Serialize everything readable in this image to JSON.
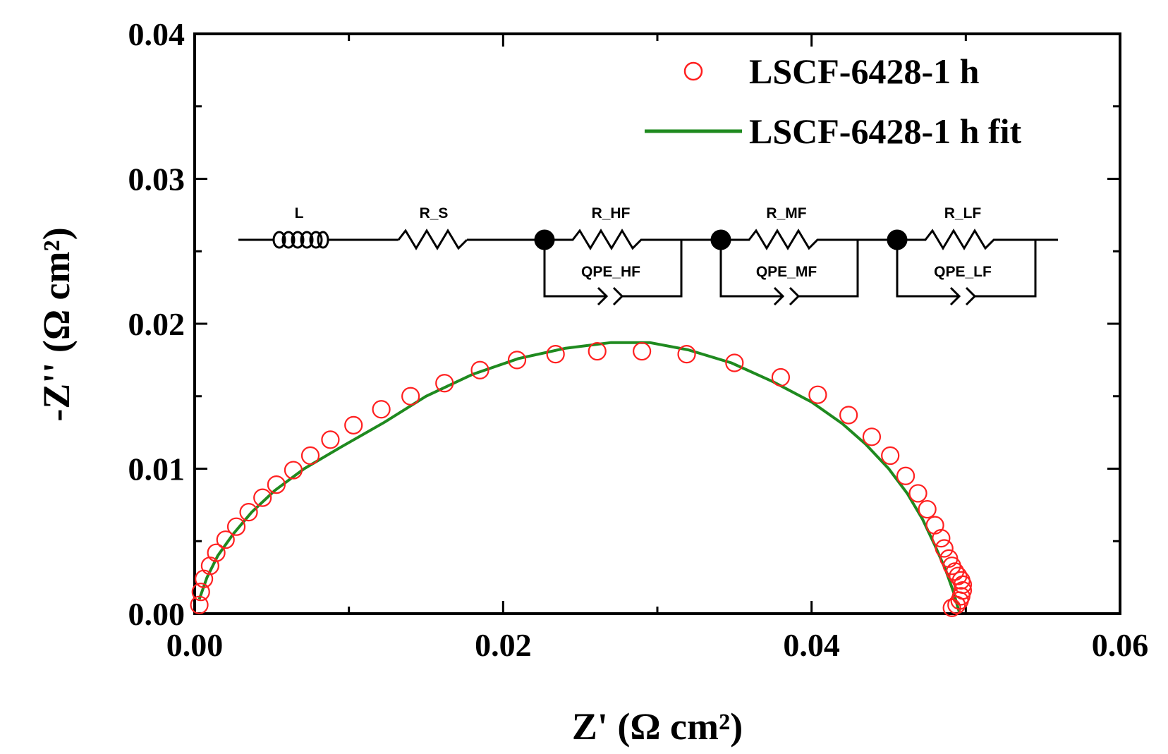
{
  "chart_data": {
    "type": "scatter",
    "xlabel": "Z' (Ω cm²)",
    "ylabel": "-Z'' (Ω cm²)",
    "xlim": [
      0,
      0.06
    ],
    "ylim": [
      0,
      0.04
    ],
    "x_ticks": [
      "0.00",
      "0.02",
      "0.04",
      "0.06"
    ],
    "y_ticks": [
      "0.00",
      "0.01",
      "0.02",
      "0.03",
      "0.04"
    ],
    "series": [
      {
        "name": "LSCF-6428-1 h",
        "style": "open-circle",
        "color": "#ff2020",
        "points": [
          [
            0.0003,
            0.0006
          ],
          [
            0.0004,
            0.0015
          ],
          [
            0.0006,
            0.0024
          ],
          [
            0.001,
            0.0033
          ],
          [
            0.0014,
            0.0042
          ],
          [
            0.002,
            0.0051
          ],
          [
            0.0027,
            0.006
          ],
          [
            0.0035,
            0.007
          ],
          [
            0.0044,
            0.008
          ],
          [
            0.0053,
            0.0089
          ],
          [
            0.0064,
            0.0099
          ],
          [
            0.0075,
            0.0109
          ],
          [
            0.0088,
            0.012
          ],
          [
            0.0103,
            0.013
          ],
          [
            0.0121,
            0.0141
          ],
          [
            0.014,
            0.015
          ],
          [
            0.0162,
            0.0159
          ],
          [
            0.0185,
            0.0168
          ],
          [
            0.0209,
            0.0175
          ],
          [
            0.0234,
            0.0179
          ],
          [
            0.0261,
            0.0181
          ],
          [
            0.029,
            0.0181
          ],
          [
            0.0319,
            0.0179
          ],
          [
            0.035,
            0.0173
          ],
          [
            0.038,
            0.0163
          ],
          [
            0.0404,
            0.0151
          ],
          [
            0.0424,
            0.0137
          ],
          [
            0.0439,
            0.0122
          ],
          [
            0.0451,
            0.0109
          ],
          [
            0.0461,
            0.0095
          ],
          [
            0.0469,
            0.0083
          ],
          [
            0.0475,
            0.0072
          ],
          [
            0.048,
            0.0061
          ],
          [
            0.0484,
            0.0052
          ],
          [
            0.0486,
            0.0045
          ],
          [
            0.0489,
            0.0038
          ],
          [
            0.0491,
            0.0033
          ],
          [
            0.0493,
            0.0029
          ],
          [
            0.0495,
            0.0026
          ],
          [
            0.0497,
            0.0023
          ],
          [
            0.0498,
            0.002
          ],
          [
            0.0498,
            0.0016
          ],
          [
            0.0497,
            0.0012
          ],
          [
            0.0496,
            0.0009
          ],
          [
            0.0494,
            0.0006
          ],
          [
            0.0491,
            0.0004
          ]
        ]
      },
      {
        "name": "LSCF-6428-1 h fit",
        "style": "line",
        "color": "#1f8a1f",
        "points": [
          [
            0.0003,
            0.001
          ],
          [
            0.0008,
            0.0025
          ],
          [
            0.0015,
            0.004
          ],
          [
            0.0025,
            0.0055
          ],
          [
            0.0037,
            0.007
          ],
          [
            0.0052,
            0.0085
          ],
          [
            0.0071,
            0.01
          ],
          [
            0.0095,
            0.0115
          ],
          [
            0.0123,
            0.0132
          ],
          [
            0.015,
            0.015
          ],
          [
            0.018,
            0.0165
          ],
          [
            0.021,
            0.0176
          ],
          [
            0.024,
            0.0183
          ],
          [
            0.027,
            0.0187
          ],
          [
            0.0295,
            0.0187
          ],
          [
            0.032,
            0.0182
          ],
          [
            0.0348,
            0.0173
          ],
          [
            0.0375,
            0.016
          ],
          [
            0.04,
            0.0146
          ],
          [
            0.042,
            0.0131
          ],
          [
            0.0435,
            0.0117
          ],
          [
            0.045,
            0.01
          ],
          [
            0.0462,
            0.0083
          ],
          [
            0.0472,
            0.0065
          ],
          [
            0.048,
            0.0047
          ],
          [
            0.0487,
            0.003
          ],
          [
            0.0492,
            0.0015
          ],
          [
            0.0496,
            0.0
          ]
        ]
      }
    ],
    "legend": {
      "placement": "top-right",
      "entries": [
        "LSCF-6428-1 h",
        "LSCF-6428-1 h fit"
      ]
    },
    "grid": false
  },
  "circuit": {
    "labels": [
      "L",
      "R_S",
      "R_HF",
      "QPE_HF",
      "R_MF",
      "QPE_MF",
      "R_LF",
      "QPE_LF"
    ]
  }
}
